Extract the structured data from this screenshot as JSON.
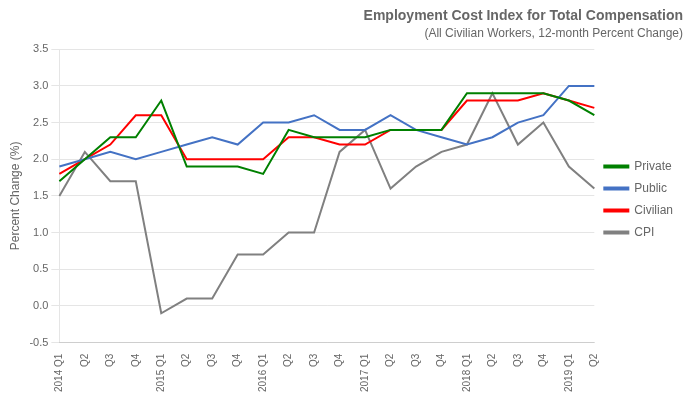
{
  "chart_data": {
    "type": "line",
    "title": "Employment Cost Index for Total Compensation",
    "subtitle": "(All Civilian Workers, 12-month Percent Change)",
    "y_label": "Percent Change (%)",
    "categories": [
      "2014 Q1",
      "Q2",
      "Q3",
      "Q4",
      "2015 Q1",
      "Q2",
      "Q3",
      "Q4",
      "2016 Q1",
      "Q2",
      "Q3",
      "Q4",
      "2017 Q1",
      "Q2",
      "Q3",
      "Q4",
      "2018 Q1",
      "Q2",
      "Q3",
      "Q4",
      "2019 Q1",
      "Q2"
    ],
    "series": [
      {
        "name": "Private",
        "color": "#008000",
        "values": [
          1.7,
          2.0,
          2.3,
          2.3,
          2.8,
          1.9,
          1.9,
          1.9,
          1.8,
          2.4,
          2.3,
          2.3,
          2.3,
          2.4,
          2.4,
          2.4,
          2.9,
          2.9,
          2.9,
          2.9,
          2.8,
          2.6
        ]
      },
      {
        "name": "Public",
        "color": "#4472C4",
        "values": [
          1.9,
          2.0,
          2.1,
          2.0,
          2.1,
          2.2,
          2.3,
          2.2,
          2.5,
          2.5,
          2.6,
          2.4,
          2.4,
          2.6,
          2.4,
          2.3,
          2.2,
          2.3,
          2.5,
          2.6,
          3.0,
          3.0
        ]
      },
      {
        "name": "Civilian",
        "color": "#FF0000",
        "values": [
          1.8,
          2.0,
          2.2,
          2.6,
          2.6,
          2.0,
          2.0,
          2.0,
          2.0,
          2.3,
          2.3,
          2.2,
          2.2,
          2.4,
          2.4,
          2.4,
          2.8,
          2.8,
          2.8,
          2.9,
          2.8,
          2.7
        ]
      },
      {
        "name": "CPI",
        "color": "#808080",
        "values": [
          1.5,
          2.1,
          1.7,
          1.7,
          -0.1,
          0.1,
          0.1,
          0.7,
          0.7,
          1.0,
          1.0,
          2.1,
          2.4,
          1.6,
          1.9,
          2.1,
          2.2,
          2.9,
          2.2,
          2.5,
          1.9,
          1.6
        ]
      }
    ],
    "ylim": [
      -0.5,
      3.5
    ],
    "yticks": [
      -0.5,
      {
        "value": 0,
        "label": "0.0"
      },
      0.5,
      {
        "value": 1,
        "label": "1.0"
      },
      1.5,
      {
        "value": 2,
        "label": "2.0"
      },
      2.5,
      {
        "value": 3,
        "label": "3.0"
      },
      3.5
    ],
    "grid": true,
    "legend": "right"
  }
}
